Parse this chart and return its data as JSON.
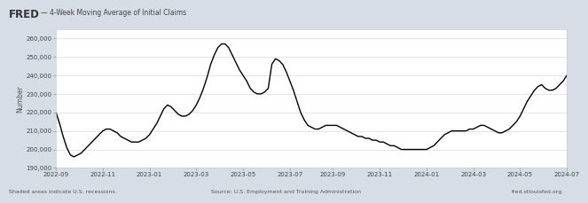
{
  "title": "4-Week Moving Average of Initial Claims",
  "ylabel": "Number",
  "outer_bg_color": "#d6dde6",
  "plot_bg_color": "#ffffff",
  "line_color": "#000000",
  "line_width": 1.0,
  "ylim": [
    190000,
    265000
  ],
  "yticks": [
    190000,
    200000,
    210000,
    220000,
    230000,
    240000,
    250000,
    260000
  ],
  "xtick_labels": [
    "2022-09",
    "2022-11",
    "2023-01",
    "2023-03",
    "2023-05",
    "2023-07",
    "2023-09",
    "2023-11",
    "2024-01",
    "2024-03",
    "2024-05",
    "2024-07"
  ],
  "footer_left": "Shaded areas indicate U.S. recessions.",
  "footer_center": "Source: U.S. Employment and Training Administration",
  "footer_right": "fred.stlouisfed.org",
  "series": [
    220000,
    214000,
    207000,
    201000,
    197000,
    196000,
    197000,
    198000,
    200000,
    202000,
    204000,
    206000,
    208000,
    210000,
    211000,
    211000,
    210000,
    209000,
    207000,
    206000,
    205000,
    204000,
    204000,
    204000,
    205000,
    206000,
    208000,
    211000,
    214000,
    218000,
    222000,
    224000,
    223000,
    221000,
    219000,
    218000,
    218000,
    219000,
    221000,
    224000,
    228000,
    233000,
    239000,
    246000,
    251000,
    255000,
    257000,
    257000,
    255000,
    251000,
    247000,
    243000,
    240000,
    237000,
    233000,
    231000,
    230000,
    230000,
    231000,
    233000,
    246000,
    249000,
    248000,
    246000,
    242000,
    237000,
    232000,
    226000,
    220000,
    216000,
    213000,
    212000,
    211000,
    211000,
    212000,
    213000,
    213000,
    213000,
    213000,
    212000,
    211000,
    210000,
    209000,
    208000,
    207000,
    207000,
    206000,
    206000,
    205000,
    205000,
    204000,
    204000,
    203000,
    202000,
    202000,
    201000,
    200000,
    200000,
    200000,
    200000,
    200000,
    200000,
    200000,
    200000,
    201000,
    202000,
    204000,
    206000,
    208000,
    209000,
    210000,
    210000,
    210000,
    210000,
    210000,
    211000,
    211000,
    212000,
    213000,
    213000,
    212000,
    211000,
    210000,
    209000,
    209000,
    210000,
    211000,
    213000,
    215000,
    218000,
    222000,
    226000,
    229000,
    232000,
    234000,
    235000,
    233000,
    232000,
    232000,
    233000,
    235000,
    237000,
    240000
  ]
}
